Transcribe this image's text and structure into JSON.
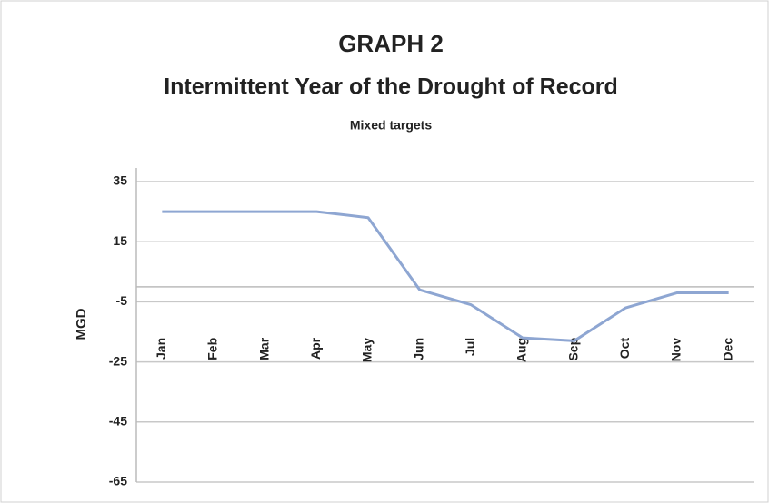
{
  "chart_data": {
    "type": "line",
    "title": "GRAPH 2",
    "subtitle": "Intermittent Year of the Drought of Record",
    "note": "Mixed targets",
    "y_label": "MGD",
    "categories": [
      "Jan",
      "Feb",
      "Mar",
      "Apr",
      "May",
      "Jun",
      "Jul",
      "Aug",
      "Sep",
      "Oct",
      "Nov",
      "Dec"
    ],
    "series": [
      {
        "name": "MGD",
        "color": "#8ea6d2",
        "values": [
          25,
          25,
          25,
          25,
          23,
          -1,
          -6,
          -17,
          -18,
          -7,
          -2,
          -2
        ]
      }
    ],
    "ylim": [
      -65,
      35
    ],
    "yticks": [
      35,
      15,
      -5,
      -25,
      -45,
      -65
    ],
    "grid": true
  }
}
